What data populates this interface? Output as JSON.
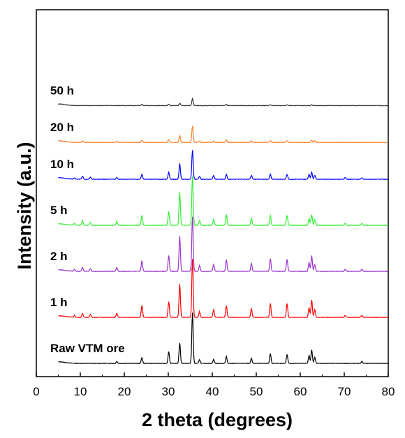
{
  "chart_data": {
    "type": "line",
    "title": "",
    "xlabel": "2 theta (degrees)",
    "ylabel": "Intensity (a.u.)",
    "xlim": [
      0,
      80
    ],
    "x_ticks": [
      "0",
      "10",
      "20",
      "30",
      "40",
      "50",
      "60",
      "70",
      "80"
    ],
    "y_ticks": [],
    "grid": false,
    "legend": "none (series labelled inline above each trace)",
    "layout": "stacked offset traces (waterfall)",
    "x_range_measured": [
      5,
      80
    ],
    "series": [
      {
        "name": "Raw VTM ore",
        "color": "#000000",
        "baseline": 0.0,
        "peaks": [
          [
            18.3,
            0.1
          ],
          [
            24.0,
            0.3
          ],
          [
            30.1,
            0.6
          ],
          [
            32.6,
            1.05
          ],
          [
            35.5,
            2.6
          ],
          [
            37.1,
            0.2
          ],
          [
            40.3,
            0.2
          ],
          [
            43.2,
            0.35
          ],
          [
            48.9,
            0.25
          ],
          [
            53.2,
            0.5
          ],
          [
            57.0,
            0.45
          ],
          [
            62.0,
            0.4
          ],
          [
            62.6,
            0.7
          ],
          [
            63.3,
            0.3
          ],
          [
            74.0,
            0.1
          ]
        ]
      },
      {
        "name": "1 h",
        "color": "#ff0000",
        "baseline": 1.0,
        "peaks": [
          [
            8.7,
            0.1
          ],
          [
            10.5,
            0.2
          ],
          [
            12.3,
            0.15
          ],
          [
            18.3,
            0.2
          ],
          [
            24.0,
            0.6
          ],
          [
            30.1,
            0.8
          ],
          [
            32.6,
            1.7
          ],
          [
            35.5,
            3.0
          ],
          [
            37.1,
            0.3
          ],
          [
            40.3,
            0.4
          ],
          [
            43.2,
            0.6
          ],
          [
            48.9,
            0.45
          ],
          [
            53.2,
            0.7
          ],
          [
            57.0,
            0.7
          ],
          [
            62.0,
            0.5
          ],
          [
            62.6,
            0.9
          ],
          [
            63.3,
            0.4
          ],
          [
            70.2,
            0.1
          ],
          [
            74.0,
            0.1
          ]
        ]
      },
      {
        "name": "2 h",
        "color": "#9933cc",
        "baseline": 2.0,
        "peaks": [
          [
            8.7,
            0.1
          ],
          [
            10.5,
            0.2
          ],
          [
            12.3,
            0.15
          ],
          [
            18.3,
            0.2
          ],
          [
            24.0,
            0.55
          ],
          [
            30.1,
            0.8
          ],
          [
            32.6,
            1.8
          ],
          [
            35.5,
            2.8
          ],
          [
            37.1,
            0.3
          ],
          [
            40.3,
            0.35
          ],
          [
            43.2,
            0.6
          ],
          [
            48.9,
            0.4
          ],
          [
            53.2,
            0.65
          ],
          [
            57.0,
            0.6
          ],
          [
            62.0,
            0.45
          ],
          [
            62.6,
            0.8
          ],
          [
            63.3,
            0.35
          ],
          [
            70.2,
            0.1
          ],
          [
            74.0,
            0.1
          ]
        ]
      },
      {
        "name": "5 h",
        "color": "#33ee33",
        "baseline": 3.0,
        "peaks": [
          [
            8.7,
            0.1
          ],
          [
            10.5,
            0.25
          ],
          [
            12.3,
            0.15
          ],
          [
            18.3,
            0.2
          ],
          [
            24.0,
            0.5
          ],
          [
            30.1,
            0.7
          ],
          [
            32.6,
            1.7
          ],
          [
            35.5,
            2.5
          ],
          [
            37.1,
            0.25
          ],
          [
            40.3,
            0.3
          ],
          [
            43.2,
            0.55
          ],
          [
            48.9,
            0.35
          ],
          [
            53.2,
            0.5
          ],
          [
            57.0,
            0.5
          ],
          [
            62.0,
            0.35
          ],
          [
            62.6,
            0.55
          ],
          [
            63.3,
            0.3
          ],
          [
            70.2,
            0.1
          ],
          [
            74.0,
            0.1
          ]
        ]
      },
      {
        "name": "10 h",
        "color": "#0000ff",
        "baseline": 4.0,
        "peaks": [
          [
            8.7,
            0.08
          ],
          [
            10.5,
            0.15
          ],
          [
            12.3,
            0.1
          ],
          [
            18.3,
            0.1
          ],
          [
            24.0,
            0.25
          ],
          [
            30.1,
            0.35
          ],
          [
            32.6,
            0.8
          ],
          [
            35.5,
            1.5
          ],
          [
            37.1,
            0.15
          ],
          [
            40.3,
            0.2
          ],
          [
            43.2,
            0.25
          ],
          [
            48.9,
            0.2
          ],
          [
            53.2,
            0.25
          ],
          [
            57.0,
            0.25
          ],
          [
            62.0,
            0.25
          ],
          [
            62.6,
            0.35
          ],
          [
            63.3,
            0.2
          ],
          [
            70.2,
            0.08
          ],
          [
            74.0,
            0.08
          ]
        ]
      },
      {
        "name": "20 h",
        "color": "#ff7f27",
        "baseline": 4.8,
        "peaks": [
          [
            10.5,
            0.08
          ],
          [
            18.3,
            0.06
          ],
          [
            24.0,
            0.12
          ],
          [
            30.1,
            0.15
          ],
          [
            32.6,
            0.35
          ],
          [
            35.5,
            0.85
          ],
          [
            37.1,
            0.08
          ],
          [
            40.3,
            0.08
          ],
          [
            43.2,
            0.12
          ],
          [
            48.9,
            0.08
          ],
          [
            53.2,
            0.1
          ],
          [
            57.0,
            0.1
          ],
          [
            62.6,
            0.12
          ],
          [
            63.3,
            0.08
          ]
        ]
      },
      {
        "name": "50 h",
        "color": "#333333",
        "baseline": 5.6,
        "peaks": [
          [
            24.0,
            0.06
          ],
          [
            30.1,
            0.08
          ],
          [
            32.6,
            0.12
          ],
          [
            35.5,
            0.35
          ],
          [
            43.2,
            0.06
          ],
          [
            53.2,
            0.05
          ],
          [
            57.0,
            0.05
          ],
          [
            62.6,
            0.06
          ]
        ]
      }
    ]
  }
}
